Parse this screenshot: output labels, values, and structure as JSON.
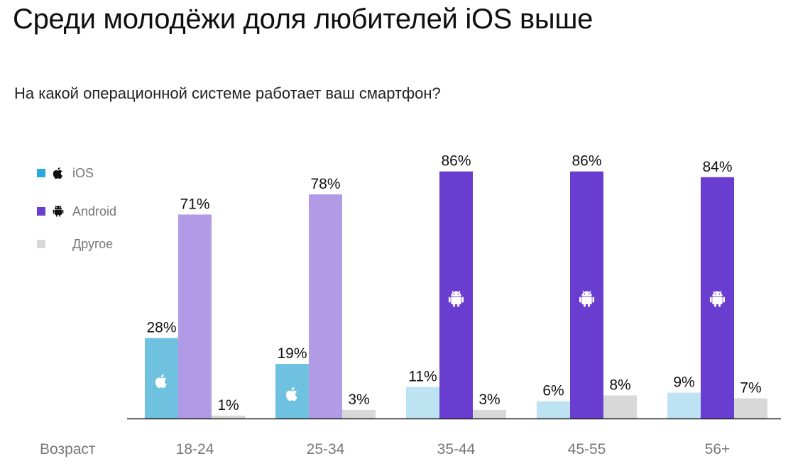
{
  "title": "Среди молодёжи доля любителей iOS выше",
  "subtitle": "На какой операционной системе работает ваш смартфон?",
  "legend": {
    "ios_label": "iOS",
    "android_label": "Android",
    "other_label": "Другое"
  },
  "colors": {
    "ios": "#6ec2e0",
    "ios_light": "#bde3f2",
    "android": "#6a3dd1",
    "android_light": "#b19be7",
    "other": "#d8d8d8",
    "axis": "#222222"
  },
  "chart_data": {
    "type": "bar",
    "xlabel": "Возраст",
    "categories": [
      "18-24",
      "25-34",
      "35-44",
      "45-55",
      "56+"
    ],
    "series": [
      {
        "name": "iOS",
        "values": [
          28,
          19,
          11,
          6,
          9
        ]
      },
      {
        "name": "Android",
        "values": [
          71,
          78,
          86,
          86,
          84
        ]
      },
      {
        "name": "Другое",
        "values": [
          1,
          3,
          3,
          8,
          7
        ]
      }
    ],
    "ylim": [
      0,
      100
    ],
    "grid": false,
    "legend_position": "left",
    "value_suffix": "%",
    "bar_icons": {
      "ios": [
        "apple-icon",
        "apple-icon",
        null,
        null,
        null
      ],
      "android": [
        null,
        null,
        "android-icon",
        "android-icon",
        "android-icon"
      ]
    }
  }
}
